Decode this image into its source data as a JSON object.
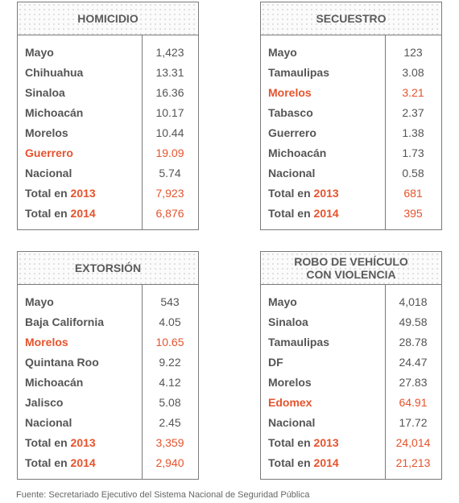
{
  "colors": {
    "accent": "#e5532d",
    "text": "#555555",
    "border": "#7a7a7a"
  },
  "cards": [
    {
      "title": "HOMICIDIO",
      "title_line2": "",
      "rows": [
        {
          "label": "Mayo",
          "value": "1,423",
          "highlight": false
        },
        {
          "label": "Chihuahua",
          "value": "13.31",
          "highlight": false
        },
        {
          "label": "Sinaloa",
          "value": "16.36",
          "highlight": false
        },
        {
          "label": "Michoacán",
          "value": "10.17",
          "highlight": false
        },
        {
          "label": "Morelos",
          "value": "10.44",
          "highlight": false
        },
        {
          "label": "Guerrero",
          "value": "19.09",
          "highlight": true
        },
        {
          "label": "Nacional",
          "value": "5.74",
          "highlight": false
        }
      ],
      "totals": [
        {
          "prefix": "Total en ",
          "year": "2013",
          "value": "7,923"
        },
        {
          "prefix": "Total en ",
          "year": "2014",
          "value": "6,876"
        }
      ]
    },
    {
      "title": "SECUESTRO",
      "title_line2": "",
      "rows": [
        {
          "label": "Mayo",
          "value": "123",
          "highlight": false
        },
        {
          "label": "Tamaulipas",
          "value": "3.08",
          "highlight": false
        },
        {
          "label": "Morelos",
          "value": "3.21",
          "highlight": true
        },
        {
          "label": "Tabasco",
          "value": "2.37",
          "highlight": false
        },
        {
          "label": "Guerrero",
          "value": "1.38",
          "highlight": false
        },
        {
          "label": "Michoacán",
          "value": "1.73",
          "highlight": false
        },
        {
          "label": "Nacional",
          "value": "0.58",
          "highlight": false
        }
      ],
      "totals": [
        {
          "prefix": "Total en ",
          "year": "2013",
          "value": "681"
        },
        {
          "prefix": "Total en ",
          "year": "2014",
          "value": "395"
        }
      ]
    },
    {
      "title": "EXTORSIÓN",
      "title_line2": "",
      "rows": [
        {
          "label": "Mayo",
          "value": "543",
          "highlight": false
        },
        {
          "label": "Baja California",
          "value": "4.05",
          "highlight": false
        },
        {
          "label": "Morelos",
          "value": "10.65",
          "highlight": true
        },
        {
          "label": "Quintana Roo",
          "value": "9.22",
          "highlight": false
        },
        {
          "label": "Michoacán",
          "value": "4.12",
          "highlight": false
        },
        {
          "label": "Jalisco",
          "value": "5.08",
          "highlight": false
        },
        {
          "label": "Nacional",
          "value": "2.45",
          "highlight": false
        }
      ],
      "totals": [
        {
          "prefix": "Total en ",
          "year": "2013",
          "value": "3,359"
        },
        {
          "prefix": "Total en ",
          "year": "2014",
          "value": "2,940"
        }
      ]
    },
    {
      "title": "ROBO DE VEHÍCULO",
      "title_line2": "CON VIOLENCIA",
      "rows": [
        {
          "label": "Mayo",
          "value": "4,018",
          "highlight": false
        },
        {
          "label": "Sinaloa",
          "value": "49.58",
          "highlight": false
        },
        {
          "label": "Tamaulipas",
          "value": "28.78",
          "highlight": false
        },
        {
          "label": "DF",
          "value": "24.47",
          "highlight": false
        },
        {
          "label": "Morelos",
          "value": "27.83",
          "highlight": false
        },
        {
          "label": "Edomex",
          "value": "64.91",
          "highlight": true
        },
        {
          "label": "Nacional",
          "value": "17.72",
          "highlight": false
        }
      ],
      "totals": [
        {
          "prefix": "Total en ",
          "year": "2013",
          "value": "24,014"
        },
        {
          "prefix": "Total en ",
          "year": "2014",
          "value": "21,213"
        }
      ]
    }
  ],
  "source": "Fuente: Secretariado Ejecutivo del Sistema Nacional de Seguridad Pública"
}
